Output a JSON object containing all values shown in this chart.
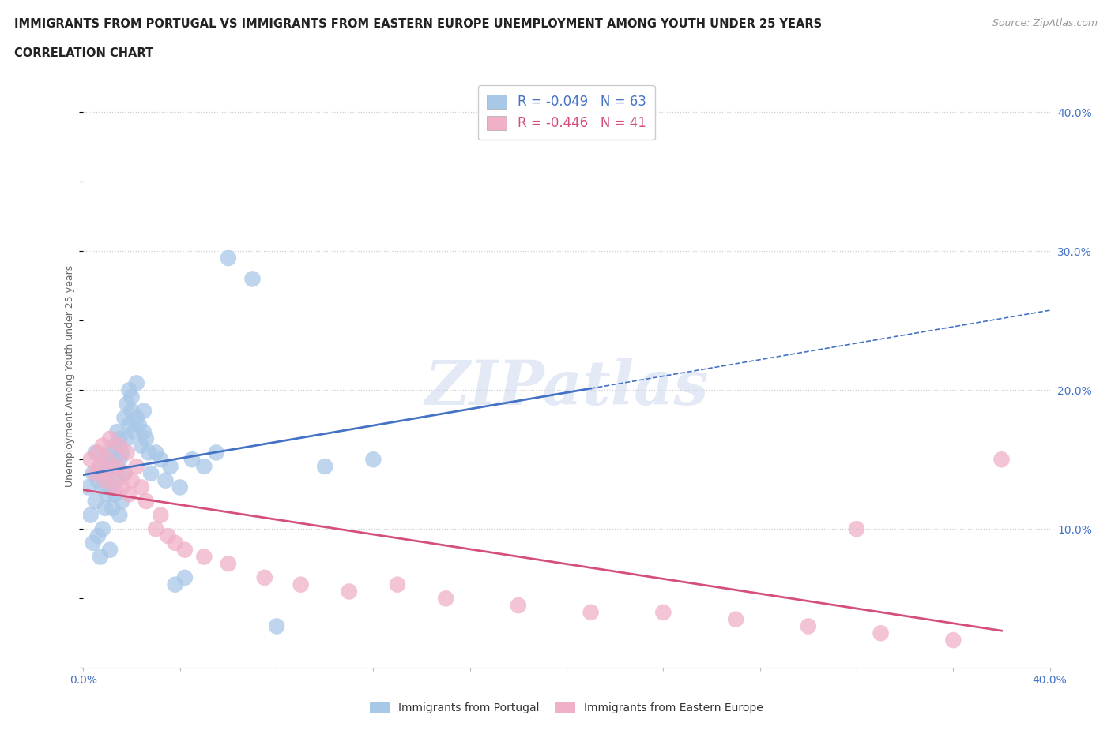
{
  "title_line1": "IMMIGRANTS FROM PORTUGAL VS IMMIGRANTS FROM EASTERN EUROPE UNEMPLOYMENT AMONG YOUTH UNDER 25 YEARS",
  "title_line2": "CORRELATION CHART",
  "source": "Source: ZipAtlas.com",
  "watermark": "ZIPatlas",
  "ylabel": "Unemployment Among Youth under 25 years",
  "xlim": [
    0.0,
    0.4
  ],
  "ylim": [
    0.0,
    0.42
  ],
  "background_color": "#ffffff",
  "portugal_color": "#a8c8e8",
  "eastern_europe_color": "#f0b0c8",
  "portugal_line_color": "#4472c4",
  "eastern_europe_line_color": "#d4507a",
  "portugal_R": -0.049,
  "portugal_N": 63,
  "eastern_europe_R": -0.446,
  "eastern_europe_N": 41,
  "portugal_scatter_x": [
    0.002,
    0.003,
    0.004,
    0.004,
    0.005,
    0.005,
    0.006,
    0.006,
    0.007,
    0.007,
    0.008,
    0.008,
    0.009,
    0.009,
    0.01,
    0.01,
    0.011,
    0.011,
    0.011,
    0.012,
    0.012,
    0.013,
    0.013,
    0.014,
    0.014,
    0.015,
    0.015,
    0.015,
    0.016,
    0.016,
    0.017,
    0.017,
    0.018,
    0.018,
    0.019,
    0.019,
    0.02,
    0.02,
    0.021,
    0.022,
    0.022,
    0.023,
    0.024,
    0.025,
    0.025,
    0.026,
    0.027,
    0.028,
    0.03,
    0.032,
    0.034,
    0.036,
    0.038,
    0.04,
    0.042,
    0.045,
    0.05,
    0.055,
    0.06,
    0.07,
    0.08,
    0.1,
    0.12
  ],
  "portugal_scatter_y": [
    0.13,
    0.11,
    0.09,
    0.14,
    0.12,
    0.155,
    0.095,
    0.135,
    0.08,
    0.145,
    0.1,
    0.13,
    0.115,
    0.14,
    0.125,
    0.15,
    0.085,
    0.13,
    0.155,
    0.115,
    0.145,
    0.125,
    0.16,
    0.135,
    0.17,
    0.11,
    0.15,
    0.165,
    0.12,
    0.155,
    0.14,
    0.18,
    0.165,
    0.19,
    0.175,
    0.2,
    0.185,
    0.195,
    0.17,
    0.18,
    0.205,
    0.175,
    0.16,
    0.185,
    0.17,
    0.165,
    0.155,
    0.14,
    0.155,
    0.15,
    0.135,
    0.145,
    0.06,
    0.13,
    0.065,
    0.15,
    0.145,
    0.155,
    0.295,
    0.28,
    0.03,
    0.145,
    0.15
  ],
  "eastern_europe_scatter_x": [
    0.003,
    0.005,
    0.006,
    0.007,
    0.008,
    0.009,
    0.01,
    0.011,
    0.012,
    0.013,
    0.014,
    0.015,
    0.016,
    0.017,
    0.018,
    0.019,
    0.02,
    0.022,
    0.024,
    0.026,
    0.03,
    0.032,
    0.035,
    0.038,
    0.042,
    0.05,
    0.06,
    0.075,
    0.09,
    0.11,
    0.13,
    0.15,
    0.18,
    0.21,
    0.24,
    0.27,
    0.3,
    0.33,
    0.36,
    0.32,
    0.38
  ],
  "eastern_europe_scatter_y": [
    0.15,
    0.14,
    0.155,
    0.145,
    0.16,
    0.135,
    0.15,
    0.165,
    0.14,
    0.13,
    0.145,
    0.16,
    0.13,
    0.14,
    0.155,
    0.125,
    0.135,
    0.145,
    0.13,
    0.12,
    0.1,
    0.11,
    0.095,
    0.09,
    0.085,
    0.08,
    0.075,
    0.065,
    0.06,
    0.055,
    0.06,
    0.05,
    0.045,
    0.04,
    0.04,
    0.035,
    0.03,
    0.025,
    0.02,
    0.1,
    0.15
  ]
}
